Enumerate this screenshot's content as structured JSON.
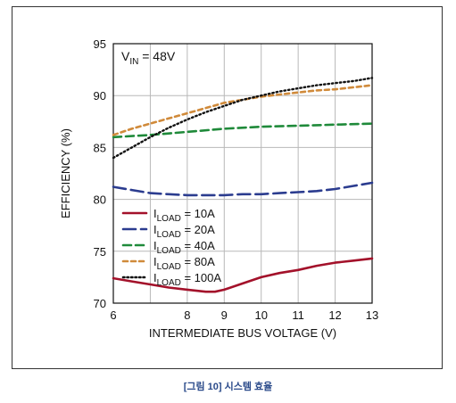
{
  "caption": "[그림 10] 시스템 효율",
  "chart_data": {
    "type": "line",
    "xlabel": "INTERMEDIATE BUS VOLTAGE (V)",
    "ylabel": "EFFICIENCY (%)",
    "xlim": [
      6,
      13
    ],
    "ylim": [
      70,
      95
    ],
    "xticks": [
      6,
      7,
      8,
      9,
      10,
      11,
      12,
      13
    ],
    "xtick_labels": [
      "6",
      "",
      "8",
      "9",
      "10",
      "11",
      "12",
      "13"
    ],
    "yticks": [
      70,
      75,
      80,
      85,
      90,
      95
    ],
    "grid": true,
    "legend_placement": "bottom-left",
    "annotation": {
      "main": "V",
      "sub": "IN",
      "rest": " = 48V"
    },
    "series": [
      {
        "label_main": "I",
        "label_sub": "LOAD",
        "label_rest": " = 10A",
        "color": "#a3112a",
        "dash": "solid",
        "x": [
          6,
          6.5,
          7,
          7.5,
          8,
          8.5,
          8.75,
          9,
          9.5,
          10,
          10.5,
          11,
          11.5,
          12,
          12.5,
          13
        ],
        "y": [
          72.4,
          72.1,
          71.8,
          71.5,
          71.3,
          71.1,
          71.1,
          71.3,
          71.9,
          72.5,
          72.9,
          73.2,
          73.6,
          73.9,
          74.1,
          74.3
        ]
      },
      {
        "label_main": "I",
        "label_sub": "LOAD",
        "label_rest": " = 20A",
        "color": "#2b3c8f",
        "dash": "long",
        "x": [
          6,
          6.5,
          7,
          7.5,
          8,
          8.5,
          9,
          9.5,
          10,
          10.5,
          11,
          11.5,
          12,
          12.5,
          13
        ],
        "y": [
          81.2,
          80.9,
          80.6,
          80.5,
          80.4,
          80.4,
          80.4,
          80.5,
          80.5,
          80.6,
          80.7,
          80.8,
          81.0,
          81.3,
          81.6
        ]
      },
      {
        "label_main": "I",
        "label_sub": "LOAD",
        "label_rest": " = 40A",
        "color": "#1f8a3a",
        "dash": "medium",
        "x": [
          6,
          7,
          8,
          9,
          10,
          11,
          12,
          13
        ],
        "y": [
          86.0,
          86.2,
          86.5,
          86.8,
          87.0,
          87.1,
          87.2,
          87.3
        ]
      },
      {
        "label_main": "I",
        "label_sub": "LOAD",
        "label_rest": " = 80A",
        "color": "#d08a3a",
        "dash": "short",
        "x": [
          6,
          6.5,
          7,
          7.5,
          8,
          8.5,
          9,
          9.5,
          10,
          10.5,
          11,
          11.5,
          12,
          12.5,
          13
        ],
        "y": [
          86.2,
          86.8,
          87.3,
          87.8,
          88.3,
          88.8,
          89.3,
          89.6,
          89.9,
          90.1,
          90.3,
          90.5,
          90.6,
          90.8,
          91.0
        ]
      },
      {
        "label_main": "I",
        "label_sub": "LOAD",
        "label_rest": " = 100A",
        "color": "#111111",
        "dash": "dotted",
        "x": [
          6,
          6.5,
          7,
          7.5,
          8,
          8.5,
          9,
          9.5,
          10,
          10.5,
          11,
          11.5,
          12,
          12.5,
          13
        ],
        "y": [
          84.0,
          85.0,
          86.0,
          86.9,
          87.7,
          88.4,
          89.0,
          89.6,
          90.0,
          90.4,
          90.7,
          91.0,
          91.2,
          91.4,
          91.7
        ]
      }
    ]
  }
}
